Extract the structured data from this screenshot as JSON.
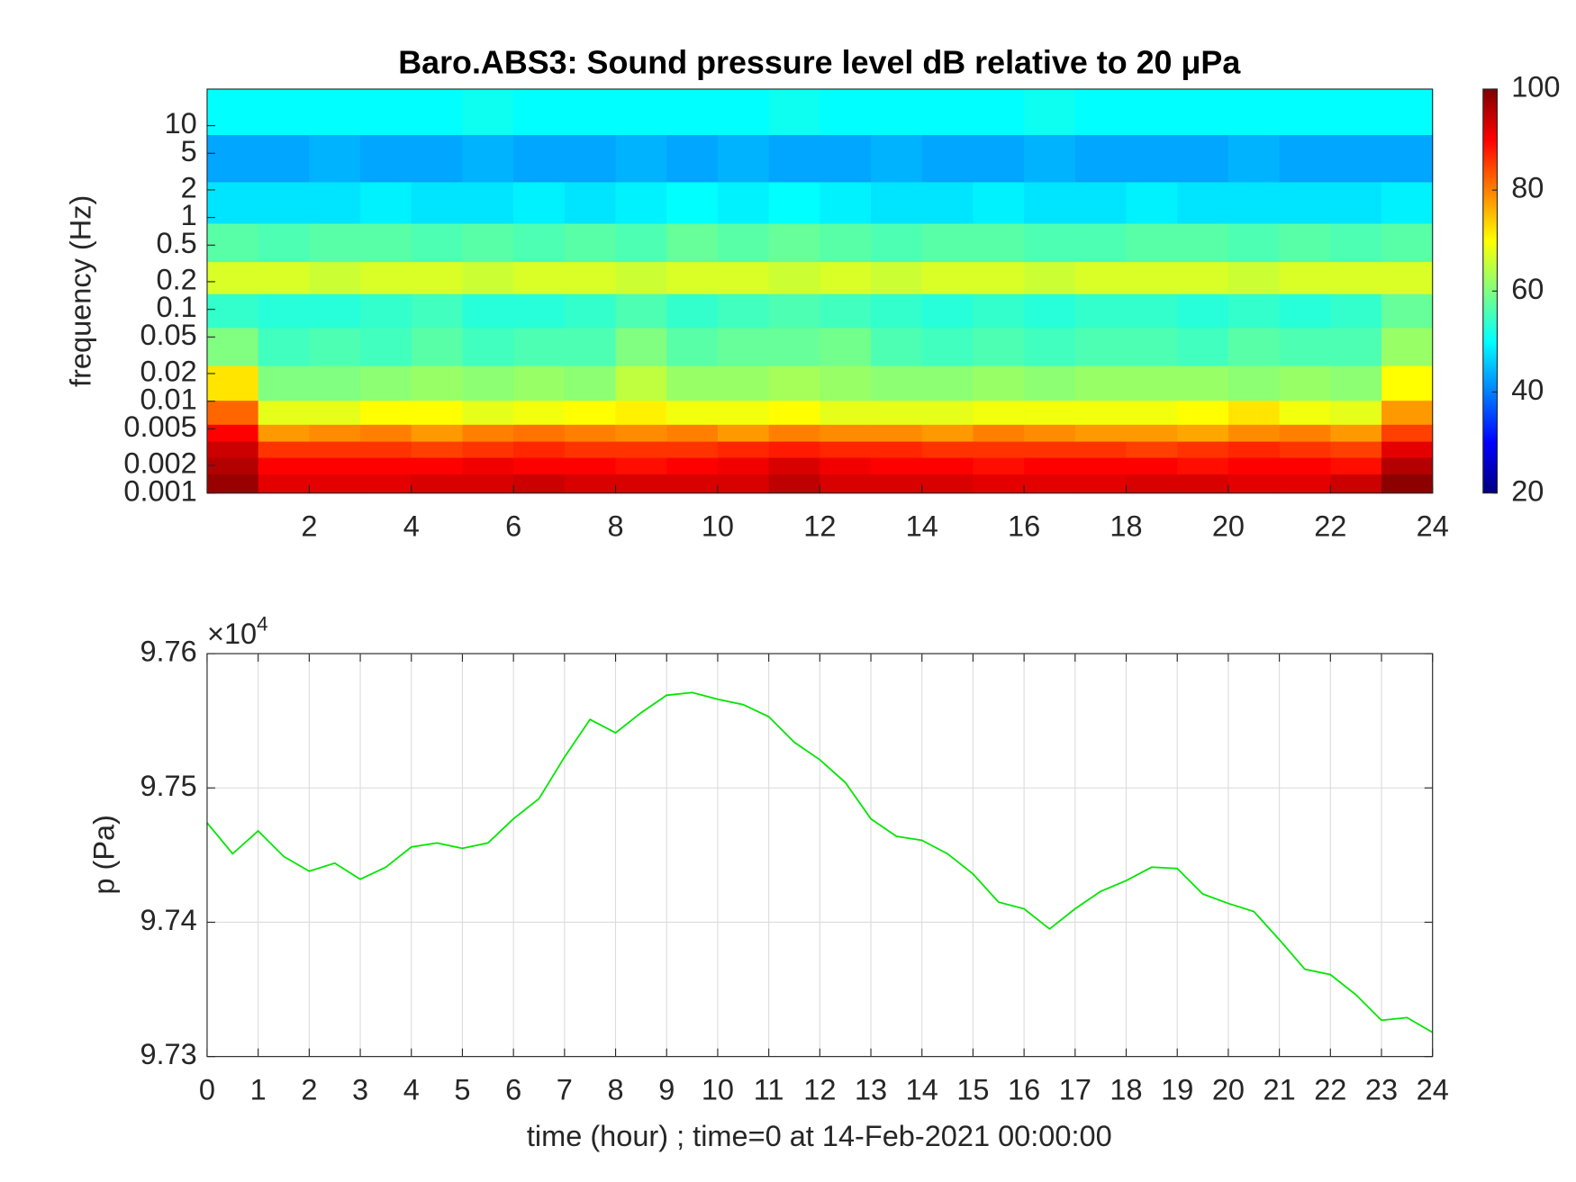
{
  "chart_data": [
    {
      "type": "heatmap",
      "title": "Baro.ABS3: Sound pressure level dB relative to 20 μPa",
      "ylabel": "frequency (Hz)",
      "x": [
        0.5,
        1.5,
        2.5,
        3.5,
        4.5,
        5.5,
        6.5,
        7.5,
        8.5,
        9.5,
        10.5,
        11.5,
        12.5,
        13.5,
        14.5,
        15.5,
        16.5,
        17.5,
        18.5,
        19.5,
        20.5,
        21.5,
        22.5,
        23.5
      ],
      "y": [
        0.0013,
        0.002,
        0.003,
        0.0045,
        0.007,
        0.015,
        0.04,
        0.1,
        0.22,
        0.5,
        1.5,
        4,
        16
      ],
      "z": [
        [
          98,
          92,
          92,
          92,
          93,
          93,
          94,
          93,
          93,
          93,
          93,
          95,
          93,
          93,
          93,
          92,
          92,
          92,
          93,
          93,
          92,
          92,
          94,
          99
        ],
        [
          96,
          90,
          90,
          90,
          90,
          91,
          90,
          90,
          89,
          90,
          91,
          93,
          91,
          90,
          90,
          89,
          90,
          90,
          90,
          89,
          90,
          90,
          89,
          96
        ],
        [
          94,
          86,
          86,
          86,
          85,
          86,
          87,
          86,
          86,
          86,
          87,
          88,
          87,
          87,
          86,
          86,
          86,
          86,
          85,
          86,
          87,
          86,
          85,
          92
        ],
        [
          90,
          78,
          79,
          80,
          78,
          80,
          81,
          80,
          79,
          80,
          78,
          80,
          79,
          79,
          78,
          80,
          79,
          78,
          78,
          77,
          79,
          80,
          78,
          85
        ],
        [
          82,
          68,
          68,
          70,
          70,
          68,
          69,
          70,
          71,
          69,
          69,
          70,
          68,
          68,
          68,
          69,
          69,
          69,
          69,
          70,
          72,
          69,
          68,
          78
        ],
        [
          72,
          60,
          60,
          61,
          62,
          61,
          62,
          61,
          65,
          62,
          62,
          63,
          62,
          61,
          61,
          62,
          61,
          62,
          62,
          62,
          61,
          62,
          61,
          70
        ],
        [
          60,
          55,
          56,
          55,
          57,
          55,
          56,
          56,
          60,
          57,
          58,
          58,
          59,
          56,
          55,
          56,
          55,
          56,
          56,
          55,
          57,
          56,
          56,
          62
        ],
        [
          54,
          53,
          53,
          54,
          55,
          53,
          53,
          54,
          56,
          54,
          55,
          56,
          55,
          54,
          53,
          54,
          53,
          54,
          54,
          53,
          54,
          53,
          54,
          58
        ],
        [
          67,
          67,
          66,
          67,
          67,
          66,
          67,
          67,
          66,
          67,
          67,
          66,
          67,
          66,
          67,
          67,
          66,
          67,
          67,
          67,
          66,
          67,
          67,
          67
        ],
        [
          57,
          56,
          57,
          57,
          56,
          57,
          56,
          57,
          56,
          58,
          57,
          58,
          57,
          56,
          57,
          57,
          56,
          56,
          57,
          57,
          56,
          57,
          56,
          57
        ],
        [
          48,
          48,
          48,
          49,
          48,
          48,
          49,
          48,
          49,
          50,
          49,
          50,
          49,
          48,
          48,
          49,
          48,
          48,
          49,
          48,
          48,
          48,
          48,
          49
        ],
        [
          43,
          43,
          44,
          43,
          43,
          44,
          43,
          43,
          44,
          43,
          44,
          43,
          43,
          44,
          43,
          43,
          44,
          43,
          43,
          43,
          44,
          43,
          43,
          43
        ],
        [
          50,
          50,
          50,
          50,
          50,
          51,
          50,
          50,
          50,
          50,
          50,
          51,
          50,
          50,
          50,
          50,
          51,
          50,
          50,
          50,
          50,
          50,
          50,
          50
        ]
      ],
      "xlim": [
        0,
        24
      ],
      "xticks": [
        2,
        4,
        6,
        8,
        10,
        12,
        14,
        16,
        18,
        20,
        22,
        24
      ],
      "ylim": [
        0.001,
        25
      ],
      "yscale": "log",
      "yticks": [
        0.001,
        0.002,
        0.005,
        0.01,
        0.02,
        0.05,
        0.1,
        0.2,
        0.5,
        1,
        2,
        5,
        10
      ],
      "colormap": "jet",
      "clim": [
        20,
        100
      ],
      "cticks": [
        20,
        40,
        60,
        80,
        100
      ]
    },
    {
      "type": "line",
      "xlabel": "time (hour) ; time=0 at 14-Feb-2021 00:00:00",
      "ylabel": "p (Pa)",
      "y_multiplier": "×10",
      "y_exponent": "4",
      "x": [
        0,
        0.5,
        1,
        1.5,
        2,
        2.5,
        3,
        3.5,
        4,
        4.5,
        5,
        5.5,
        6,
        6.5,
        7,
        7.5,
        8,
        8.5,
        9,
        9.5,
        10,
        10.5,
        11,
        11.5,
        12,
        12.5,
        13,
        13.5,
        14,
        14.5,
        15,
        15.5,
        16,
        16.5,
        17,
        17.5,
        18,
        18.5,
        19,
        19.5,
        20,
        20.5,
        21,
        21.5,
        22,
        22.5,
        23,
        23.5,
        24
      ],
      "series": [
        {
          "color": "#00e600",
          "values": [
            97474,
            97451,
            97468,
            97449,
            97438,
            97444,
            97432,
            97441,
            97456,
            97459,
            97455,
            97459,
            97477,
            97492,
            97523,
            97551,
            97541,
            97556,
            97569,
            97571,
            97566,
            97562,
            97553,
            97534,
            97521,
            97504,
            97477,
            97464,
            97461,
            97451,
            97436,
            97415,
            97410,
            97395,
            97410,
            97423,
            97431,
            97441,
            97440,
            97421,
            97414,
            97408,
            97387,
            97365,
            97361,
            97346,
            97327,
            97329,
            97318
          ]
        }
      ],
      "xlim": [
        0,
        24
      ],
      "xticks": [
        0,
        1,
        2,
        3,
        4,
        5,
        6,
        7,
        8,
        9,
        10,
        11,
        12,
        13,
        14,
        15,
        16,
        17,
        18,
        19,
        20,
        21,
        22,
        23,
        24
      ],
      "ylim": [
        97300,
        97600
      ],
      "yticks": [
        {
          "value": 97300,
          "label": "9.73"
        },
        {
          "value": 97400,
          "label": "9.74"
        },
        {
          "value": 97500,
          "label": "9.75"
        },
        {
          "value": 97600,
          "label": "9.76"
        }
      ],
      "grid": true
    }
  ]
}
